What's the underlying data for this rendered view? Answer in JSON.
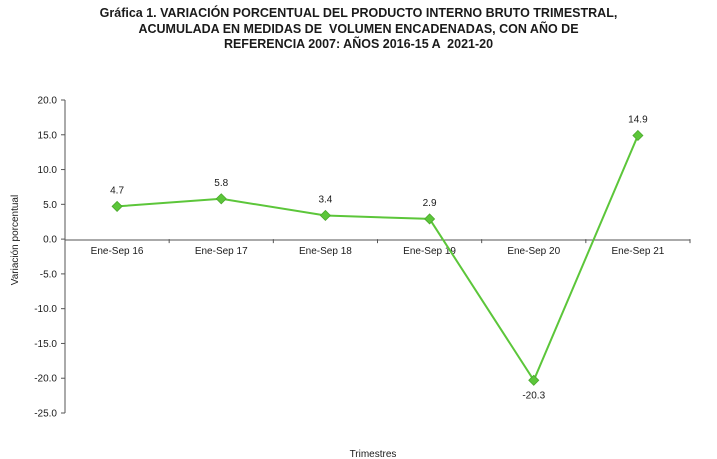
{
  "chart_data": {
    "type": "line",
    "title_lines": [
      "Gráfica 1. VARIACIÓN PORCENTUAL DEL PRODUCTO INTERNO BRUTO TRIMESTRAL,",
      "ACUMULADA EN MEDIDAS DE  VOLUMEN ENCADENADAS, CON AÑO DE",
      "REFERENCIA 2007: AÑOS 2016-15 A  2021-20"
    ],
    "xlabel": "Trimestres",
    "ylabel": "Variación porcentual",
    "categories": [
      "Ene-Sep 16",
      "Ene-Sep 17",
      "Ene-Sep 18",
      "Ene-Sep 19",
      "Ene-Sep 20",
      "Ene-Sep 21"
    ],
    "series": [
      {
        "values": [
          4.7,
          5.8,
          3.4,
          2.9,
          -20.3,
          14.9
        ],
        "color": "#5cc63a"
      }
    ],
    "data_labels": [
      "4.7",
      "5.8",
      "3.4",
      "2.9",
      "-20.3",
      "14.9"
    ],
    "yticks": [
      "20.0",
      "15.0",
      "10.0",
      "5.0",
      "0.0",
      "-5.0",
      "-10.0",
      "-15.0",
      "-20.0",
      "-25.0"
    ],
    "ylim": [
      -25,
      20
    ],
    "plot_background": "#ffffff",
    "grid": false,
    "legend": "none"
  }
}
